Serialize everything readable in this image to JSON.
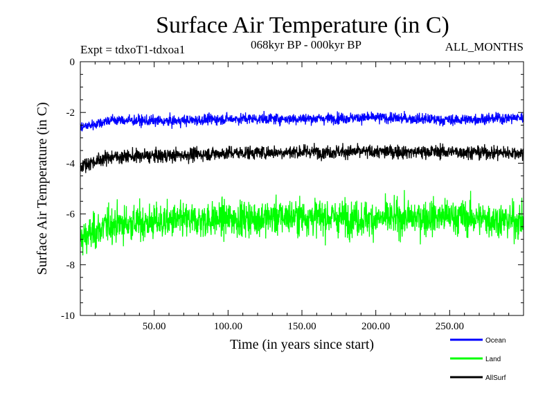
{
  "chart_data": {
    "type": "line",
    "title": "Surface Air Temperature (in C)",
    "subtitle": "068kyr BP - 000kyr BP",
    "experiment_label": "Expt = tdxoT1-tdxoa1",
    "season_label": "ALL_MONTHS",
    "xlabel": "Time (in years since start)",
    "ylabel": "Surface Air Temperature (in C)",
    "xlim": [
      0,
      300
    ],
    "ylim": [
      -10,
      0
    ],
    "x_ticks": [
      50,
      100,
      150,
      200,
      250
    ],
    "x_tick_labels": [
      "50.00",
      "100.00",
      "150.00",
      "200.00",
      "250.00"
    ],
    "y_ticks": [
      0,
      -2,
      -4,
      -6,
      -8,
      -10
    ],
    "y_tick_labels": [
      "0",
      "-2",
      "-4",
      "-6",
      "-8",
      "-10"
    ],
    "grid": false,
    "legend_position": "bottom-right, outside plot",
    "series": [
      {
        "name": "Ocean",
        "color": "#0000ff",
        "mean": [
          -2.6,
          -2.3,
          -2.35,
          -2.25,
          -2.25,
          -2.2,
          -2.3,
          -2.2
        ],
        "mean_x": [
          0,
          20,
          60,
          100,
          150,
          200,
          250,
          300
        ],
        "amplitude": 0.28
      },
      {
        "name": "Land",
        "color": "#00ff00",
        "mean": [
          -7.0,
          -6.4,
          -6.3,
          -6.2,
          -6.1,
          -6.2,
          -6.1,
          -6.3
        ],
        "mean_x": [
          0,
          20,
          60,
          100,
          150,
          200,
          250,
          300
        ],
        "amplitude": 0.9
      },
      {
        "name": "AllSurf",
        "color": "#000000",
        "mean": [
          -4.1,
          -3.75,
          -3.7,
          -3.6,
          -3.55,
          -3.55,
          -3.55,
          -3.6
        ],
        "mean_x": [
          0,
          20,
          60,
          100,
          150,
          200,
          250,
          300
        ],
        "amplitude": 0.35
      }
    ]
  }
}
